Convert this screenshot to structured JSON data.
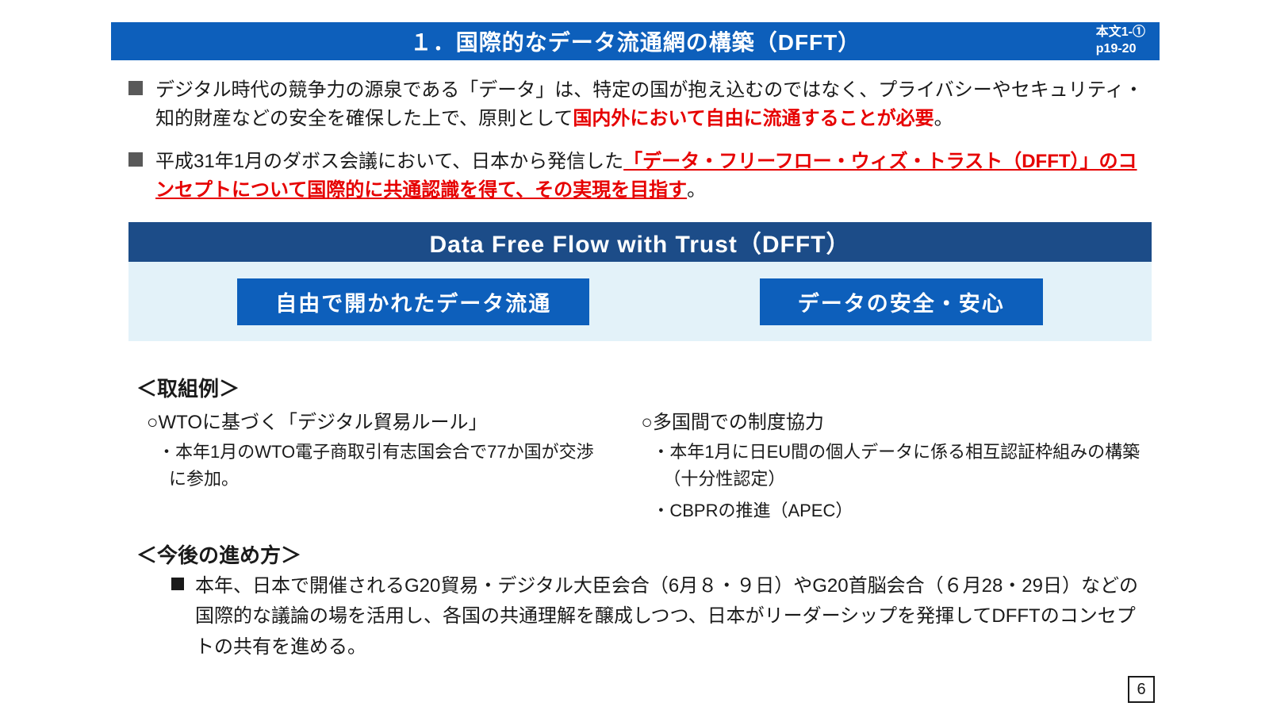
{
  "header": {
    "title": "１．国際的なデータ流通網の構築（DFFT）",
    "ref_line1": "本文1-①",
    "ref_line2": "p19-20"
  },
  "bullets": {
    "b1": {
      "pre": "デジタル時代の競争力の源泉である「データ」は、特定の国が抱え込むのではなく、プライバシーやセキュリティ・知的財産などの安全を確保した上で、原則として",
      "emphasis": "国内外において自由に流通することが必要",
      "post": "。"
    },
    "b2": {
      "pre": "平成31年1月のダボス会議において、日本から発信した",
      "emphasis": "「データ・フリーフロー・ウィズ・トラスト（DFFT）」のコンセプトについて国際的に共通認識を得て、その実現を目指す",
      "post": "。"
    }
  },
  "dfft_band": "Data Free  Flow with Trust（DFFT）",
  "pillars": {
    "left": "自由で開かれたデータ流通",
    "right": "データの安全・安心"
  },
  "examples": {
    "heading": "＜取組例＞",
    "left": {
      "title": "○WTOに基づく「デジタル貿易ルール」",
      "item1": "・本年1月のWTO電子商取引有志国会合で77か国が交渉に参加。"
    },
    "right": {
      "title": "○多国間での制度協力",
      "item1": "・本年1月に日EU間の個人データに係る相互認証枠組みの構築（十分性認定）",
      "item2": "・CBPRの推進（APEC）"
    }
  },
  "next_steps": {
    "heading": "＜今後の進め方＞",
    "text": "本年、日本で開催されるG20貿易・デジタル大臣会合（6月８・９日）やG20首脳会合（６月28・29日）などの国際的な議論の場を活用し、各国の共通理解を醸成しつつ、日本がリーダーシップを発揮してDFFTのコンセプトの共有を進める。"
  },
  "page_number": "6",
  "colors": {
    "header_bg": "#0d5fbb",
    "band_bg": "#1c4c88",
    "light_blue": "#e3f2f9",
    "red": "#e60000",
    "bullet_grey": "#595959"
  }
}
